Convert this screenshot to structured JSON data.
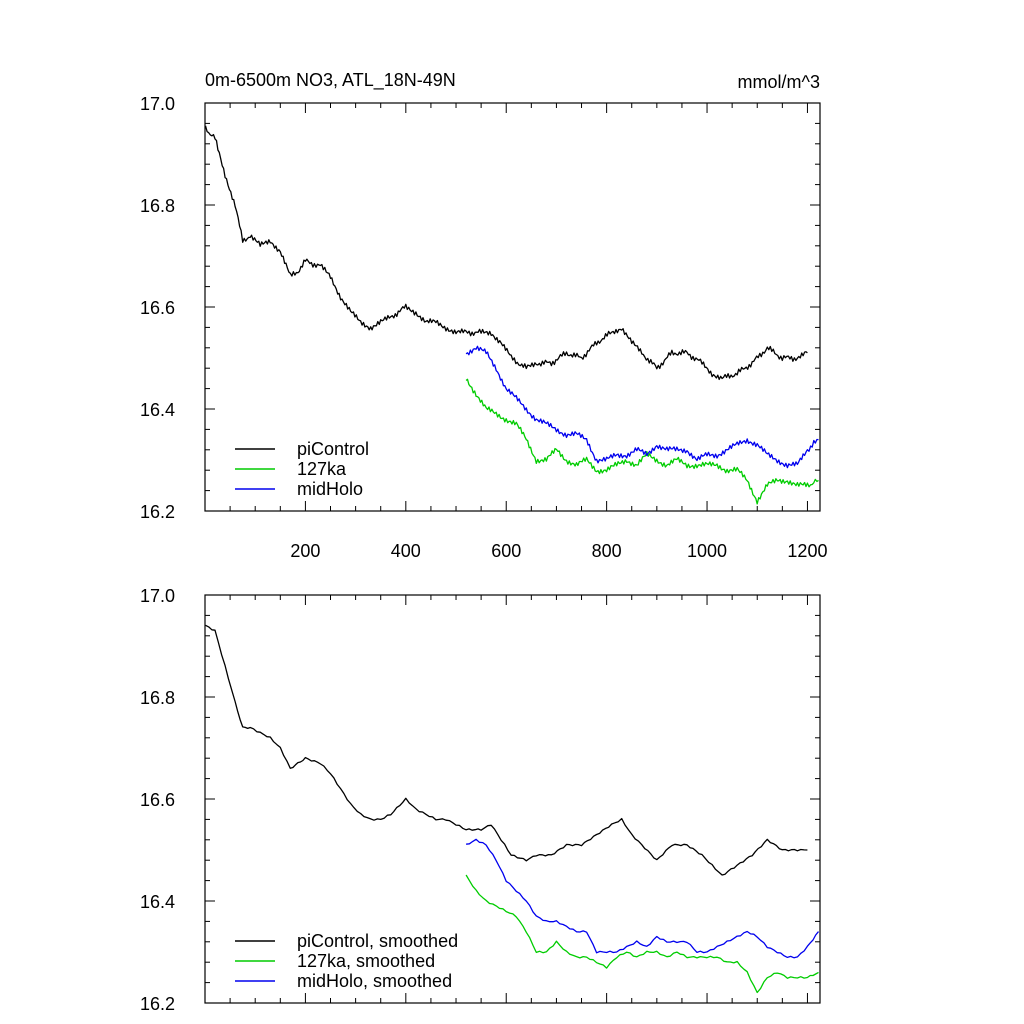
{
  "chart_data": [
    {
      "type": "line",
      "title": "0m-6500m NO3, ATL_18N-49N",
      "units": "mmol/m^3",
      "xlim": [
        0,
        1225
      ],
      "ylim": [
        16.2,
        17.0
      ],
      "x_ticks": [
        200,
        400,
        600,
        800,
        1000,
        1200
      ],
      "y_ticks": [
        "17.0",
        "16.8",
        "16.6",
        "16.4",
        "16.2"
      ],
      "series": [
        {
          "name": "piControl",
          "color": "#000000",
          "points": [
            [
              1,
              16.95
            ],
            [
              20,
              16.93
            ],
            [
              40,
              16.86
            ],
            [
              60,
              16.8
            ],
            [
              75,
              16.73
            ],
            [
              90,
              16.74
            ],
            [
              110,
              16.72
            ],
            [
              130,
              16.73
            ],
            [
              150,
              16.71
            ],
            [
              170,
              16.66
            ],
            [
              185,
              16.67
            ],
            [
              200,
              16.69
            ],
            [
              230,
              16.68
            ],
            [
              250,
              16.66
            ],
            [
              270,
              16.62
            ],
            [
              290,
              16.59
            ],
            [
              310,
              16.57
            ],
            [
              330,
              16.56
            ],
            [
              350,
              16.57
            ],
            [
              370,
              16.58
            ],
            [
              400,
              16.6
            ],
            [
              420,
              16.59
            ],
            [
              440,
              16.57
            ],
            [
              460,
              16.57
            ],
            [
              480,
              16.56
            ],
            [
              500,
              16.55
            ],
            [
              520,
              16.55
            ],
            [
              550,
              16.55
            ],
            [
              570,
              16.55
            ],
            [
              590,
              16.53
            ],
            [
              610,
              16.5
            ],
            [
              640,
              16.48
            ],
            [
              660,
              16.49
            ],
            [
              690,
              16.49
            ],
            [
              720,
              16.51
            ],
            [
              750,
              16.5
            ],
            [
              780,
              16.53
            ],
            [
              810,
              16.55
            ],
            [
              830,
              16.56
            ],
            [
              850,
              16.53
            ],
            [
              870,
              16.51
            ],
            [
              900,
              16.48
            ],
            [
              930,
              16.51
            ],
            [
              960,
              16.51
            ],
            [
              990,
              16.49
            ],
            [
              1010,
              16.47
            ],
            [
              1030,
              16.46
            ],
            [
              1060,
              16.47
            ],
            [
              1090,
              16.49
            ],
            [
              1120,
              16.52
            ],
            [
              1150,
              16.5
            ],
            [
              1180,
              16.5
            ],
            [
              1200,
              16.51
            ]
          ]
        },
        {
          "name": "127ka",
          "color": "#00cc00",
          "points": [
            [
              520,
              16.46
            ],
            [
              540,
              16.43
            ],
            [
              560,
              16.4
            ],
            [
              580,
              16.39
            ],
            [
              600,
              16.38
            ],
            [
              620,
              16.37
            ],
            [
              640,
              16.34
            ],
            [
              660,
              16.3
            ],
            [
              680,
              16.3
            ],
            [
              700,
              16.32
            ],
            [
              720,
              16.3
            ],
            [
              740,
              16.29
            ],
            [
              760,
              16.3
            ],
            [
              780,
              16.28
            ],
            [
              800,
              16.28
            ],
            [
              820,
              16.29
            ],
            [
              840,
              16.3
            ],
            [
              860,
              16.29
            ],
            [
              880,
              16.31
            ],
            [
              900,
              16.3
            ],
            [
              920,
              16.29
            ],
            [
              940,
              16.3
            ],
            [
              960,
              16.29
            ],
            [
              980,
              16.29
            ],
            [
              1000,
              16.29
            ],
            [
              1020,
              16.29
            ],
            [
              1040,
              16.28
            ],
            [
              1060,
              16.28
            ],
            [
              1080,
              16.26
            ],
            [
              1100,
              16.22
            ],
            [
              1120,
              16.25
            ],
            [
              1140,
              16.26
            ],
            [
              1160,
              16.26
            ],
            [
              1180,
              16.25
            ],
            [
              1200,
              16.25
            ],
            [
              1222,
              16.26
            ]
          ]
        },
        {
          "name": "midHolo",
          "color": "#0000ee",
          "points": [
            [
              520,
              16.51
            ],
            [
              540,
              16.52
            ],
            [
              560,
              16.51
            ],
            [
              580,
              16.48
            ],
            [
              600,
              16.44
            ],
            [
              620,
              16.42
            ],
            [
              640,
              16.4
            ],
            [
              660,
              16.38
            ],
            [
              680,
              16.37
            ],
            [
              700,
              16.36
            ],
            [
              720,
              16.35
            ],
            [
              740,
              16.35
            ],
            [
              760,
              16.34
            ],
            [
              780,
              16.3
            ],
            [
              800,
              16.3
            ],
            [
              820,
              16.31
            ],
            [
              840,
              16.31
            ],
            [
              860,
              16.32
            ],
            [
              880,
              16.31
            ],
            [
              900,
              16.33
            ],
            [
              920,
              16.32
            ],
            [
              940,
              16.32
            ],
            [
              960,
              16.32
            ],
            [
              980,
              16.3
            ],
            [
              1000,
              16.31
            ],
            [
              1020,
              16.31
            ],
            [
              1040,
              16.32
            ],
            [
              1060,
              16.33
            ],
            [
              1080,
              16.34
            ],
            [
              1100,
              16.33
            ],
            [
              1120,
              16.31
            ],
            [
              1140,
              16.3
            ],
            [
              1160,
              16.29
            ],
            [
              1180,
              16.29
            ],
            [
              1200,
              16.32
            ],
            [
              1222,
              16.34
            ]
          ]
        }
      ],
      "legend": [
        "piControl",
        "127ka",
        "midHolo"
      ]
    },
    {
      "type": "line",
      "title": "",
      "units": "",
      "xlim": [
        0,
        1225
      ],
      "ylim": [
        16.2,
        17.0
      ],
      "x_ticks": [],
      "y_ticks": [
        "17.0",
        "16.8",
        "16.6",
        "16.4",
        "16.2"
      ],
      "series": [
        {
          "name": "piControl, smoothed",
          "color": "#000000",
          "points": [
            [
              1,
              16.94
            ],
            [
              20,
              16.93
            ],
            [
              40,
              16.86
            ],
            [
              60,
              16.79
            ],
            [
              75,
              16.74
            ],
            [
              90,
              16.74
            ],
            [
              110,
              16.73
            ],
            [
              130,
              16.72
            ],
            [
              150,
              16.7
            ],
            [
              170,
              16.66
            ],
            [
              185,
              16.67
            ],
            [
              200,
              16.68
            ],
            [
              230,
              16.67
            ],
            [
              250,
              16.65
            ],
            [
              270,
              16.62
            ],
            [
              290,
              16.59
            ],
            [
              310,
              16.57
            ],
            [
              330,
              16.56
            ],
            [
              350,
              16.56
            ],
            [
              370,
              16.57
            ],
            [
              400,
              16.6
            ],
            [
              420,
              16.58
            ],
            [
              440,
              16.57
            ],
            [
              460,
              16.56
            ],
            [
              480,
              16.56
            ],
            [
              500,
              16.55
            ],
            [
              520,
              16.54
            ],
            [
              550,
              16.54
            ],
            [
              570,
              16.55
            ],
            [
              590,
              16.52
            ],
            [
              610,
              16.49
            ],
            [
              640,
              16.48
            ],
            [
              660,
              16.49
            ],
            [
              690,
              16.49
            ],
            [
              720,
              16.51
            ],
            [
              750,
              16.51
            ],
            [
              780,
              16.53
            ],
            [
              810,
              16.55
            ],
            [
              830,
              16.56
            ],
            [
              850,
              16.53
            ],
            [
              870,
              16.51
            ],
            [
              900,
              16.48
            ],
            [
              930,
              16.51
            ],
            [
              960,
              16.51
            ],
            [
              990,
              16.49
            ],
            [
              1010,
              16.47
            ],
            [
              1030,
              16.45
            ],
            [
              1060,
              16.47
            ],
            [
              1090,
              16.49
            ],
            [
              1120,
              16.52
            ],
            [
              1150,
              16.5
            ],
            [
              1180,
              16.5
            ],
            [
              1200,
              16.5
            ]
          ]
        },
        {
          "name": "127ka, smoothed",
          "color": "#00cc00",
          "points": [
            [
              520,
              16.45
            ],
            [
              540,
              16.42
            ],
            [
              560,
              16.4
            ],
            [
              580,
              16.39
            ],
            [
              600,
              16.38
            ],
            [
              620,
              16.37
            ],
            [
              640,
              16.34
            ],
            [
              660,
              16.3
            ],
            [
              680,
              16.3
            ],
            [
              700,
              16.32
            ],
            [
              720,
              16.3
            ],
            [
              740,
              16.29
            ],
            [
              760,
              16.29
            ],
            [
              780,
              16.28
            ],
            [
              800,
              16.27
            ],
            [
              820,
              16.29
            ],
            [
              840,
              16.3
            ],
            [
              860,
              16.29
            ],
            [
              880,
              16.3
            ],
            [
              900,
              16.3
            ],
            [
              920,
              16.29
            ],
            [
              940,
              16.3
            ],
            [
              960,
              16.29
            ],
            [
              980,
              16.29
            ],
            [
              1000,
              16.29
            ],
            [
              1020,
              16.29
            ],
            [
              1040,
              16.28
            ],
            [
              1060,
              16.28
            ],
            [
              1080,
              16.26
            ],
            [
              1100,
              16.22
            ],
            [
              1120,
              16.25
            ],
            [
              1140,
              16.26
            ],
            [
              1160,
              16.25
            ],
            [
              1180,
              16.25
            ],
            [
              1200,
              16.25
            ],
            [
              1222,
              16.26
            ]
          ]
        },
        {
          "name": "midHolo, smoothed",
          "color": "#0000ee",
          "points": [
            [
              520,
              16.51
            ],
            [
              540,
              16.52
            ],
            [
              560,
              16.51
            ],
            [
              580,
              16.48
            ],
            [
              600,
              16.44
            ],
            [
              620,
              16.42
            ],
            [
              640,
              16.4
            ],
            [
              660,
              16.37
            ],
            [
              680,
              16.36
            ],
            [
              700,
              16.36
            ],
            [
              720,
              16.35
            ],
            [
              740,
              16.34
            ],
            [
              760,
              16.34
            ],
            [
              780,
              16.3
            ],
            [
              800,
              16.3
            ],
            [
              820,
              16.3
            ],
            [
              840,
              16.31
            ],
            [
              860,
              16.32
            ],
            [
              880,
              16.31
            ],
            [
              900,
              16.33
            ],
            [
              920,
              16.32
            ],
            [
              940,
              16.32
            ],
            [
              960,
              16.32
            ],
            [
              980,
              16.3
            ],
            [
              1000,
              16.3
            ],
            [
              1020,
              16.31
            ],
            [
              1040,
              16.32
            ],
            [
              1060,
              16.33
            ],
            [
              1080,
              16.34
            ],
            [
              1100,
              16.33
            ],
            [
              1120,
              16.31
            ],
            [
              1140,
              16.3
            ],
            [
              1160,
              16.29
            ],
            [
              1180,
              16.29
            ],
            [
              1200,
              16.31
            ],
            [
              1222,
              16.34
            ]
          ]
        }
      ],
      "legend": [
        "piControl, smoothed",
        "127ka, smoothed",
        "midHolo, smoothed"
      ]
    }
  ]
}
